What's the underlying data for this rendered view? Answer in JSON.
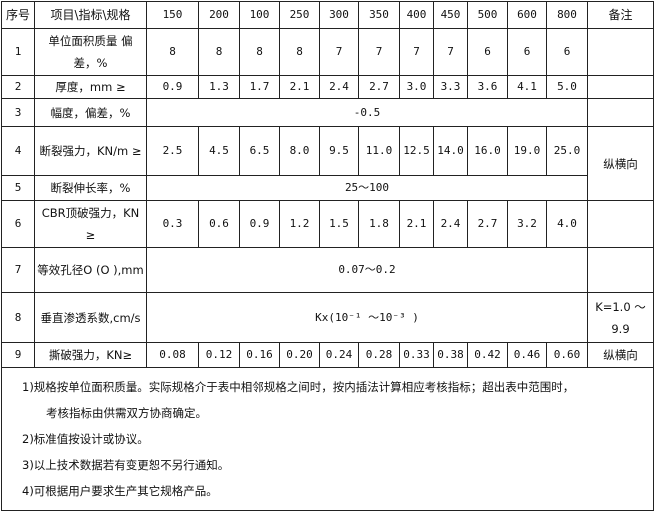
{
  "header": {
    "no": "序号",
    "item": "项目\\指标\\规格",
    "specs": [
      "150",
      "200",
      "100",
      "250",
      "300",
      "350",
      "400",
      "450",
      "500",
      "600",
      "800"
    ],
    "remark": "备注"
  },
  "rows": [
    {
      "no": "1",
      "item": "单位面积质量 偏差，%",
      "values": [
        "8",
        "8",
        "8",
        "8",
        "7",
        "7",
        "7",
        "7",
        "6",
        "6",
        "6"
      ],
      "remark": ""
    },
    {
      "no": "2",
      "item": "厚度，mm ≥",
      "values": [
        "0.9",
        "1.3",
        "1.7",
        "2.1",
        "2.4",
        "2.7",
        "3.0",
        "3.3",
        "3.6",
        "4.1",
        "5.0"
      ],
      "remark": ""
    },
    {
      "no": "3",
      "item": "幅度，偏差，%",
      "merged": "-0.5",
      "remark": ""
    },
    {
      "no": "4",
      "item": "断裂强力，KN/m ≥",
      "values": [
        "2.5",
        "4.5",
        "6.5",
        "8.0",
        "9.5",
        "11.0",
        "12.5",
        "14.0",
        "16.0",
        "19.0",
        "25.0"
      ],
      "remark": "纵横向",
      "remark_rowspan": 2
    },
    {
      "no": "5",
      "item": "断裂伸长率，%",
      "merged": "25～100"
    },
    {
      "no": "6",
      "item": "CBR顶破强力，KN ≥",
      "values": [
        "0.3",
        "0.6",
        "0.9",
        "1.2",
        "1.5",
        "1.8",
        "2.1",
        "2.4",
        "2.7",
        "3.2",
        "4.0"
      ],
      "remark": ""
    },
    {
      "no": "7",
      "item": "等效孔径O (O ),mm",
      "merged": "0.07～0.2",
      "remark": ""
    },
    {
      "no": "8",
      "item": "垂直渗透系数,cm/s",
      "merged": "Kx(10⁻¹ ～10⁻³ )",
      "remark": "K=1.0 ～ 9.9"
    },
    {
      "no": "9",
      "item": "撕破强力，KN≥",
      "values": [
        "0.08",
        "0.12",
        "0.16",
        "0.20",
        "0.24",
        "0.28",
        "0.33",
        "0.38",
        "0.42",
        "0.46",
        "0.60"
      ],
      "remark": "纵横向"
    }
  ],
  "notes": [
    "1)规格按单位面积质量。实际规格介于表中相邻规格之间时，按内插法计算相应考核指标；超出表中范围时，",
    "考核指标由供需双方协商确定。",
    "2)标准值按设计或协议。",
    "3)以上技术数据若有变更恕不另行通知。",
    "4)可根据用户要求生产其它规格产品。"
  ]
}
